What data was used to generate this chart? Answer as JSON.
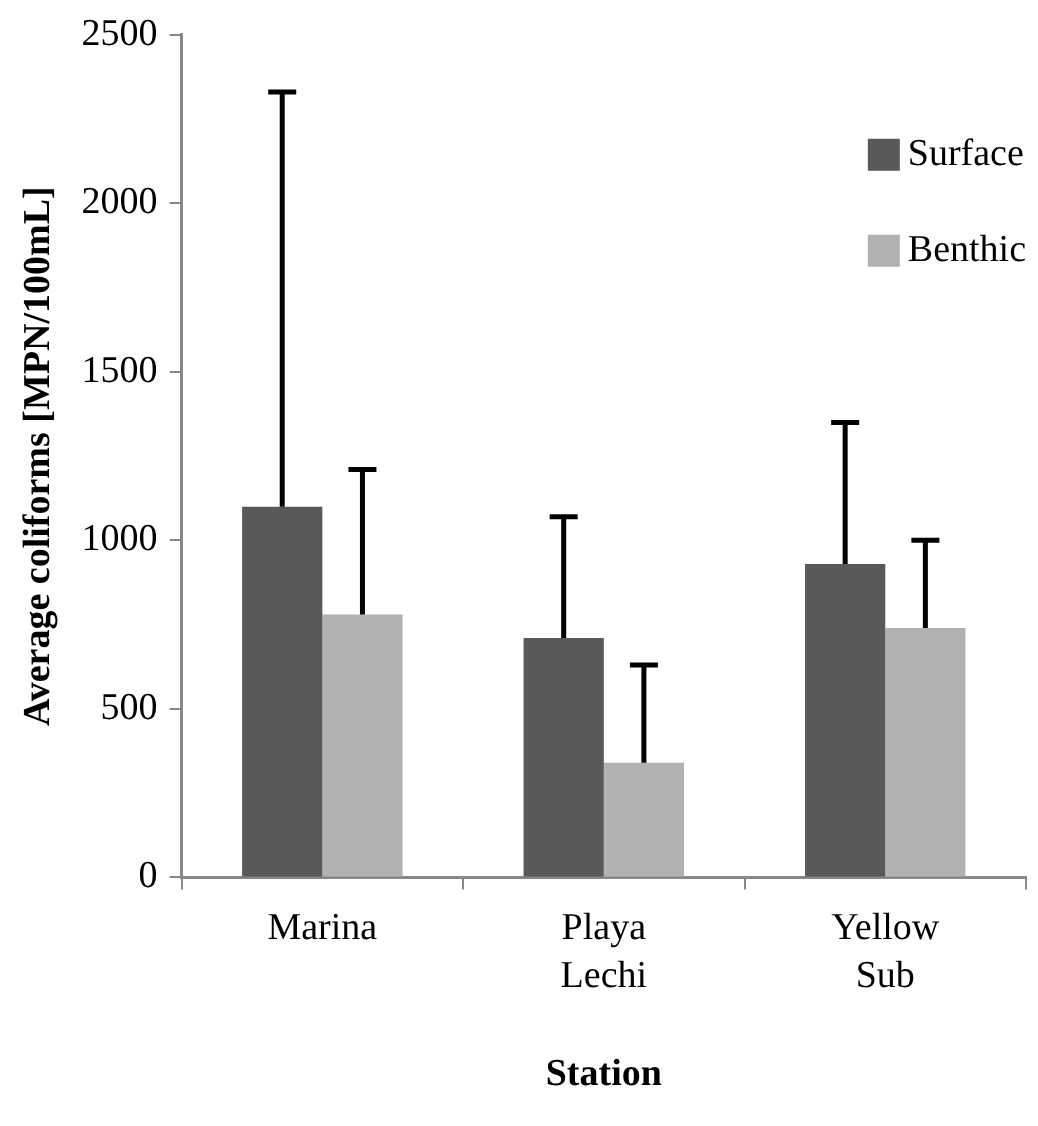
{
  "chart_data": {
    "type": "bar",
    "xlabel": "Station",
    "ylabel": "Average coliforms [MPN/100mL]",
    "categories": [
      "Marina",
      "Playa Lechi",
      "Yellow Sub"
    ],
    "series": [
      {
        "name": "Surface",
        "color": "#595959",
        "values": [
          1100,
          710,
          930
        ],
        "errors": [
          [
            1100,
            2330
          ],
          [
            710,
            1070
          ],
          [
            930,
            1350
          ]
        ]
      },
      {
        "name": "Benthic",
        "color": "#b2b2b2",
        "values": [
          780,
          340,
          740
        ],
        "errors": [
          [
            780,
            1210
          ],
          [
            340,
            630
          ],
          [
            740,
            1000
          ]
        ]
      }
    ],
    "ylim": [
      0,
      2500
    ],
    "yticks": [
      0,
      500,
      1000,
      1500,
      2000,
      2500
    ],
    "grid": false,
    "legend": "top right"
  }
}
